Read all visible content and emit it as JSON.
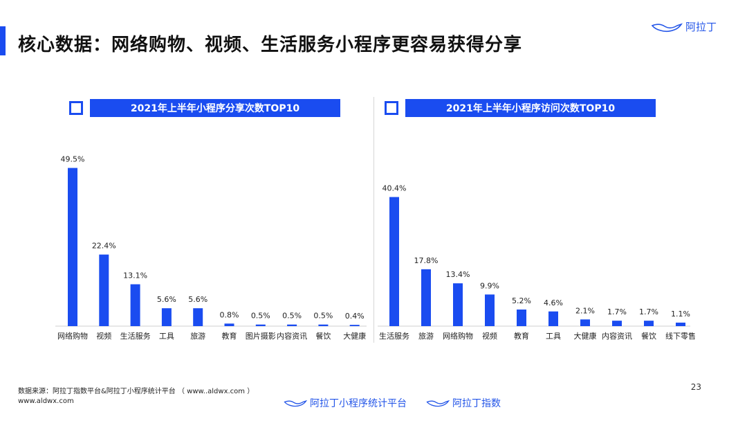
{
  "page": {
    "title": "核心数据：网络购物、视频、生活服务小程序更容易获得分享",
    "brand": "阿拉丁",
    "page_number": "23",
    "source_line1": "数据来源：阿拉丁指数平台&阿拉丁小程序统计平台 （ www..aldwx.com ）",
    "source_line2": "www.aldwx.com",
    "footer_brand1": "阿拉丁小程序统计平台",
    "footer_brand2": "阿拉丁指数"
  },
  "colors": {
    "accent": "#1a4cf0"
  },
  "chart_data": [
    {
      "type": "bar",
      "title": "2021年上半年小程序分享次数TOP10",
      "categories": [
        "网络购物",
        "视频",
        "生活服务",
        "工具",
        "旅游",
        "教育",
        "图片摄影",
        "内容资讯",
        "餐饮",
        "大健康"
      ],
      "values": [
        49.5,
        22.4,
        13.1,
        5.6,
        5.6,
        0.8,
        0.5,
        0.5,
        0.5,
        0.4
      ],
      "labels": [
        "49.5%",
        "22.4%",
        "13.1%",
        "5.6%",
        "5.6%",
        "0.8%",
        "0.5%",
        "0.5%",
        "0.5%",
        "0.4%"
      ],
      "unit": "%",
      "ylim": [
        0,
        52
      ],
      "grid": false
    },
    {
      "type": "bar",
      "title": "2021年上半年小程序访问次数TOP10",
      "categories": [
        "生活服务",
        "旅游",
        "网络购物",
        "视频",
        "教育",
        "工具",
        "大健康",
        "内容资讯",
        "餐饮",
        "线下零售"
      ],
      "values": [
        40.4,
        17.8,
        13.4,
        9.9,
        5.2,
        4.6,
        2.1,
        1.7,
        1.7,
        1.1
      ],
      "labels": [
        "40.4%",
        "17.8%",
        "13.4%",
        "9.9%",
        "5.2%",
        "4.6%",
        "2.1%",
        "1.7%",
        "1.7%",
        "1.1%"
      ],
      "unit": "%",
      "ylim": [
        0,
        52
      ],
      "grid": false
    }
  ]
}
